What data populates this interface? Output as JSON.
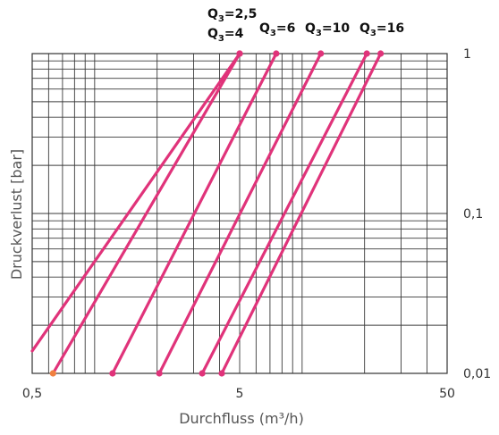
{
  "chart_data": {
    "type": "line",
    "xlabel": "Durchfluss (m³/h)",
    "ylabel": "Druckverlust [bar]",
    "x_scale": "log",
    "y_scale": "log",
    "xlim": [
      0.5,
      50
    ],
    "ylim": [
      0.01,
      1
    ],
    "grid": true,
    "x_ticks": [
      {
        "value": 0.5,
        "label": "0,5"
      },
      {
        "value": 5,
        "label": "5"
      },
      {
        "value": 50,
        "label": "50"
      }
    ],
    "y_ticks": [
      {
        "value": 1,
        "label": "1"
      },
      {
        "value": 0.1,
        "label": "0,1"
      },
      {
        "value": 0.01,
        "label": "0,01"
      }
    ],
    "color": "#e0337a",
    "marker_color": "#e0337a",
    "highlight_marker_color": "#f08040",
    "series": [
      {
        "label_main": "Q",
        "label_sub": "3",
        "label_rest": "=2,5",
        "points": [
          [
            0.5,
            0.0138
          ],
          [
            5.0,
            1.0
          ]
        ]
      },
      {
        "label_main": "Q",
        "label_sub": "3",
        "label_rest": "=4",
        "points": [
          [
            0.63,
            0.01
          ],
          [
            5.0,
            1.0
          ]
        ]
      },
      {
        "label_main": "Q",
        "label_sub": "3",
        "label_rest": "=6",
        "points": [
          [
            1.22,
            0.01
          ],
          [
            7.5,
            1.0
          ]
        ]
      },
      {
        "label_main": "Q",
        "label_sub": "3",
        "label_rest": "=10",
        "points": [
          [
            2.05,
            0.01
          ],
          [
            12.3,
            1.0
          ]
        ]
      },
      {
        "label_main": "Q",
        "label_sub": "3",
        "label_rest": "=16",
        "points": [
          [
            3.3,
            0.01
          ],
          [
            20.5,
            1.0
          ]
        ]
      },
      {
        "label_main": "",
        "label_sub": "",
        "label_rest": "",
        "points": [
          [
            4.1,
            0.01
          ],
          [
            23.9,
            1.0
          ]
        ]
      }
    ]
  }
}
